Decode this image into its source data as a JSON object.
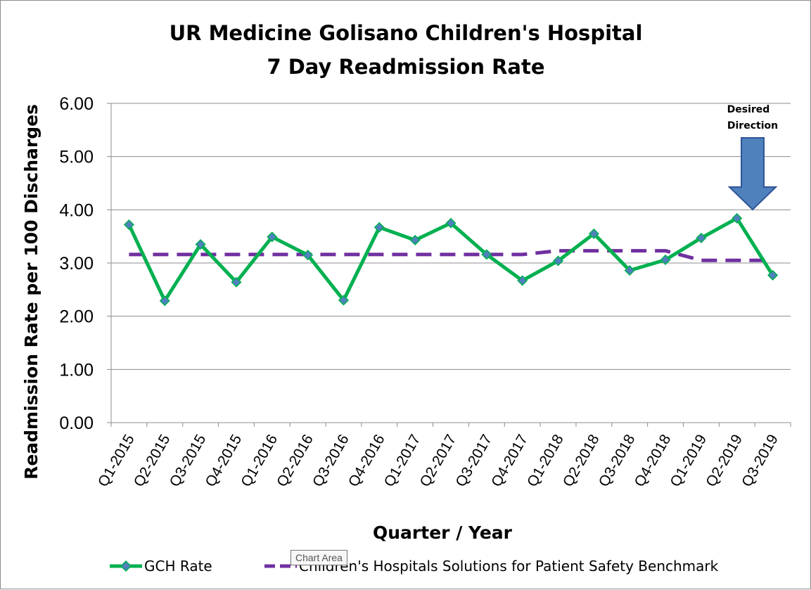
{
  "chart_data": {
    "type": "line",
    "title": [
      "UR Medicine Golisano Children's Hospital",
      "7 Day Readmission Rate"
    ],
    "xlabel": "Quarter / Year",
    "ylabel": "Readmission Rate per 100 Discharges",
    "ylim": [
      0,
      6
    ],
    "yticks": [
      "0.00",
      "1.00",
      "2.00",
      "3.00",
      "4.00",
      "5.00",
      "6.00"
    ],
    "grid": true,
    "categories": [
      "Q1-2015",
      "Q2-2015",
      "Q3-2015",
      "Q4-2015",
      "Q1-2016",
      "Q2-2016",
      "Q3-2016",
      "Q4-2016",
      "Q1-2017",
      "Q2-2017",
      "Q3-2017",
      "Q4-2017",
      "Q1-2018",
      "Q2-2018",
      "Q3-2018",
      "Q4-2018",
      "Q1-2019",
      "Q2-2019",
      "Q3-2019"
    ],
    "series": [
      {
        "name": "GCH Rate",
        "color": "#00b050",
        "marker_color": "#4f81bd",
        "values": [
          3.72,
          2.29,
          3.35,
          2.64,
          3.49,
          3.15,
          2.3,
          3.67,
          3.43,
          3.75,
          3.16,
          2.67,
          3.04,
          3.55,
          2.86,
          3.06,
          3.47,
          3.84,
          2.77
        ]
      },
      {
        "name": "Children's Hospitals Solutions for Patient Safety Benchmark",
        "color": "#7030a0",
        "dashed": true,
        "values": [
          3.16,
          3.16,
          3.16,
          3.16,
          3.16,
          3.16,
          3.16,
          3.16,
          3.16,
          3.16,
          3.16,
          3.16,
          3.23,
          3.23,
          3.23,
          3.23,
          3.05,
          3.05,
          3.05
        ]
      }
    ],
    "annotation": {
      "text": [
        "Desired",
        "Direction"
      ],
      "arrow_color": "#4f81bd",
      "arrow_direction": "down"
    },
    "legend_position": "bottom"
  },
  "tooltip": "Chart Area"
}
